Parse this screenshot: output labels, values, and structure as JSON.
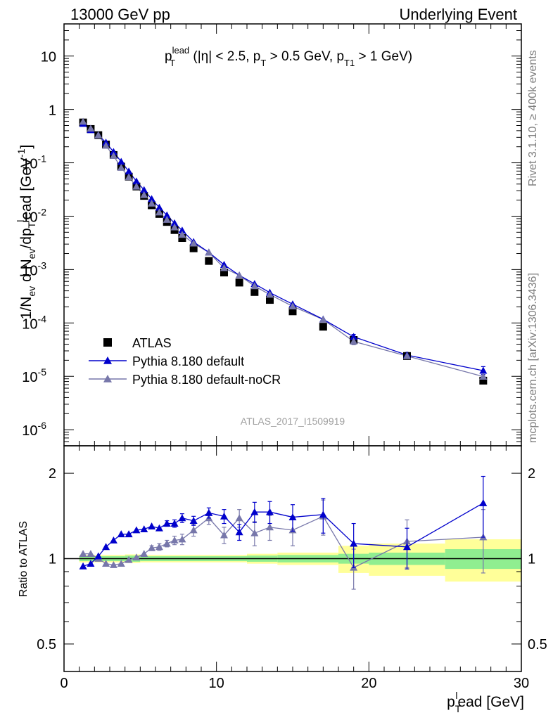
{
  "header": {
    "left": "13000 GeV pp",
    "right": "Underlying Event"
  },
  "side_labels": {
    "rivet": "Rivet 3.1.10, ≥ 400k events",
    "mcplots": "mcplots.cern.ch [arXiv:1306.3436]"
  },
  "main_title": {
    "p": "p",
    "sup": "lead",
    "sub": "T",
    "rest1": " (|η| < 2.5, p",
    "sub2": "T",
    "rest2": " > 0.5 GeV, p",
    "sub3": "T1",
    "rest3": " > 1 GeV)"
  },
  "watermark": "ATLAS_2017_I1509919",
  "legend": [
    {
      "label": "ATLAS",
      "marker": "square",
      "color": "#000000"
    },
    {
      "label": "Pythia 8.180 default",
      "marker": "triangle",
      "color": "#0000cc"
    },
    {
      "label": "Pythia 8.180 default-noCR",
      "marker": "triangle",
      "color": "#7777aa"
    }
  ],
  "chart_data": [
    {
      "type": "scatter",
      "panel": "main",
      "ylabel_parts": {
        "a": "1/N",
        "a_sub": "ev",
        "b": " d N",
        "b_sub": "ev",
        "c": "/dp",
        "c_sub": "T",
        "c_sup": "l",
        "d": "ead [GeV",
        "d_sup": "-1",
        "e": "]"
      },
      "xlim": [
        0,
        30
      ],
      "ylim": [
        5e-07,
        40
      ],
      "yscale": "log",
      "ytick_labels": [
        {
          "base": "10",
          "exp": "-6",
          "value": 1e-06
        },
        {
          "base": "10",
          "exp": "-5",
          "value": 1e-05
        },
        {
          "base": "10",
          "exp": "-4",
          "value": 0.0001
        },
        {
          "base": "10",
          "exp": "-3",
          "value": 0.001
        },
        {
          "base": "10",
          "exp": "-2",
          "value": 0.01
        },
        {
          "base": "10",
          "exp": "-1",
          "value": 0.1
        },
        {
          "base": "1",
          "exp": "",
          "value": 1
        },
        {
          "base": "10",
          "exp": "",
          "value": 10
        }
      ],
      "x": [
        1.25,
        1.75,
        2.25,
        2.75,
        3.25,
        3.75,
        4.25,
        4.75,
        5.25,
        5.75,
        6.25,
        6.75,
        7.25,
        7.75,
        8.5,
        9.5,
        10.5,
        11.5,
        12.5,
        13.5,
        15.0,
        17.0,
        19.0,
        22.5,
        27.5
      ],
      "series": [
        {
          "name": "ATLAS",
          "color": "#000000",
          "marker": "square",
          "values": [
            0.57,
            0.43,
            0.33,
            0.22,
            0.14,
            0.085,
            0.055,
            0.036,
            0.024,
            0.016,
            0.011,
            0.0078,
            0.0055,
            0.0039,
            0.0025,
            0.00145,
            0.00088,
            0.00057,
            0.00038,
            0.00027,
            0.000165,
            8.5e-05,
            4.8e-05,
            2.4e-05,
            8.3e-06
          ]
        },
        {
          "name": "Pythia 8.180 default",
          "color": "#0000cc",
          "marker": "triangle",
          "values": [
            0.54,
            0.41,
            0.33,
            0.24,
            0.16,
            0.105,
            0.069,
            0.045,
            0.031,
            0.021,
            0.0145,
            0.0104,
            0.0074,
            0.0054,
            0.0033,
            0.0021,
            0.00123,
            0.00078,
            0.00054,
            0.00037,
            0.000225,
            0.000117,
            5.5e-05,
            2.5e-05,
            1.28e-05
          ]
        },
        {
          "name": "Pythia 8.180 default-noCR",
          "color": "#7777aa",
          "marker": "triangle",
          "values": [
            0.59,
            0.44,
            0.33,
            0.21,
            0.135,
            0.081,
            0.054,
            0.036,
            0.025,
            0.0173,
            0.0118,
            0.0086,
            0.0062,
            0.0045,
            0.0031,
            0.0021,
            0.00107,
            0.00078,
            0.00049,
            0.00034,
            0.000205,
            0.000116,
            4.5e-05,
            2.4e-05,
            9.9e-06
          ]
        }
      ],
      "error_bars": [
        {
          "series": "Pythia 8.180 default",
          "x": 19.0,
          "lo": 4.9e-05,
          "hi": 6.1e-05
        },
        {
          "series": "Pythia 8.180 default",
          "x": 22.5,
          "lo": 2.2e-05,
          "hi": 2.8e-05
        },
        {
          "series": "Pythia 8.180 default",
          "x": 27.5,
          "lo": 1.08e-05,
          "hi": 1.52e-05
        },
        {
          "series": "Pythia 8.180 default-noCR",
          "x": 19.0,
          "lo": 3.9e-05,
          "hi": 5.2e-05
        },
        {
          "series": "Pythia 8.180 default-noCR",
          "x": 27.5,
          "lo": 7.9e-06,
          "hi": 1.21e-05
        }
      ]
    },
    {
      "type": "line",
      "panel": "ratio",
      "ylabel": "Ratio to ATLAS",
      "xlabel_parts": {
        "p": "p",
        "sub": "T",
        "sup": "l",
        "rest": "ead [GeV]"
      },
      "xlim": [
        0,
        30
      ],
      "ylim": [
        0.4,
        2.5
      ],
      "yscale": "log",
      "ytick_labels": [
        {
          "label": "0.5",
          "value": 0.5
        },
        {
          "label": "1",
          "value": 1
        },
        {
          "label": "2",
          "value": 2
        }
      ],
      "xtick_labels": [
        {
          "label": "0",
          "value": 0
        },
        {
          "label": "10",
          "value": 10
        },
        {
          "label": "20",
          "value": 20
        },
        {
          "label": "30",
          "value": 30
        }
      ],
      "x": [
        1.25,
        1.75,
        2.25,
        2.75,
        3.25,
        3.75,
        4.25,
        4.75,
        5.25,
        5.75,
        6.25,
        6.75,
        7.25,
        7.75,
        8.5,
        9.5,
        10.5,
        11.5,
        12.5,
        13.5,
        15.0,
        17.0,
        19.0,
        22.5,
        27.5
      ],
      "series": [
        {
          "name": "Pythia 8.180 default",
          "color": "#0000cc",
          "marker": "triangle",
          "values": [
            0.94,
            0.96,
            1.02,
            1.1,
            1.16,
            1.22,
            1.22,
            1.26,
            1.27,
            1.3,
            1.28,
            1.33,
            1.33,
            1.39,
            1.36,
            1.45,
            1.41,
            1.24,
            1.46,
            1.46,
            1.4,
            1.43,
            1.13,
            1.1,
            1.57
          ],
          "errors": [
            0.0,
            0.0,
            0.0,
            0.0,
            0.0,
            0.0,
            0.0,
            0.0,
            0.0,
            0.0,
            0.0,
            0.03,
            0.04,
            0.05,
            0.05,
            0.06,
            0.08,
            0.08,
            0.12,
            0.13,
            0.15,
            0.2,
            0.2,
            0.18,
            0.38
          ]
        },
        {
          "name": "Pythia 8.180 default-noCR",
          "color": "#7777aa",
          "marker": "triangle",
          "values": [
            1.04,
            1.04,
            1.0,
            0.96,
            0.95,
            0.96,
            0.99,
            1.01,
            1.04,
            1.09,
            1.1,
            1.13,
            1.16,
            1.17,
            1.26,
            1.39,
            1.21,
            1.39,
            1.23,
            1.29,
            1.26,
            1.41,
            0.93,
            1.15,
            1.19
          ],
          "errors": [
            0.0,
            0.0,
            0.0,
            0.0,
            0.0,
            0.0,
            0.0,
            0.0,
            0.0,
            0.02,
            0.03,
            0.03,
            0.04,
            0.05,
            0.06,
            0.07,
            0.08,
            0.1,
            0.12,
            0.13,
            0.15,
            0.2,
            0.15,
            0.22,
            0.3
          ]
        }
      ],
      "uncertainty_bands": {
        "edges": [
          1.0,
          4.0,
          5.0,
          12.0,
          14.0,
          18.0,
          20.0,
          25.0,
          30.0
        ],
        "inner": [
          0.02,
          0.025,
          0.02,
          0.025,
          0.03,
          0.04,
          0.05,
          0.08
        ],
        "outer": [
          0.03,
          0.035,
          0.03,
          0.04,
          0.05,
          0.11,
          0.13,
          0.17
        ],
        "inner_color": "#90ee90",
        "outer_color": "#ffff99"
      }
    }
  ]
}
